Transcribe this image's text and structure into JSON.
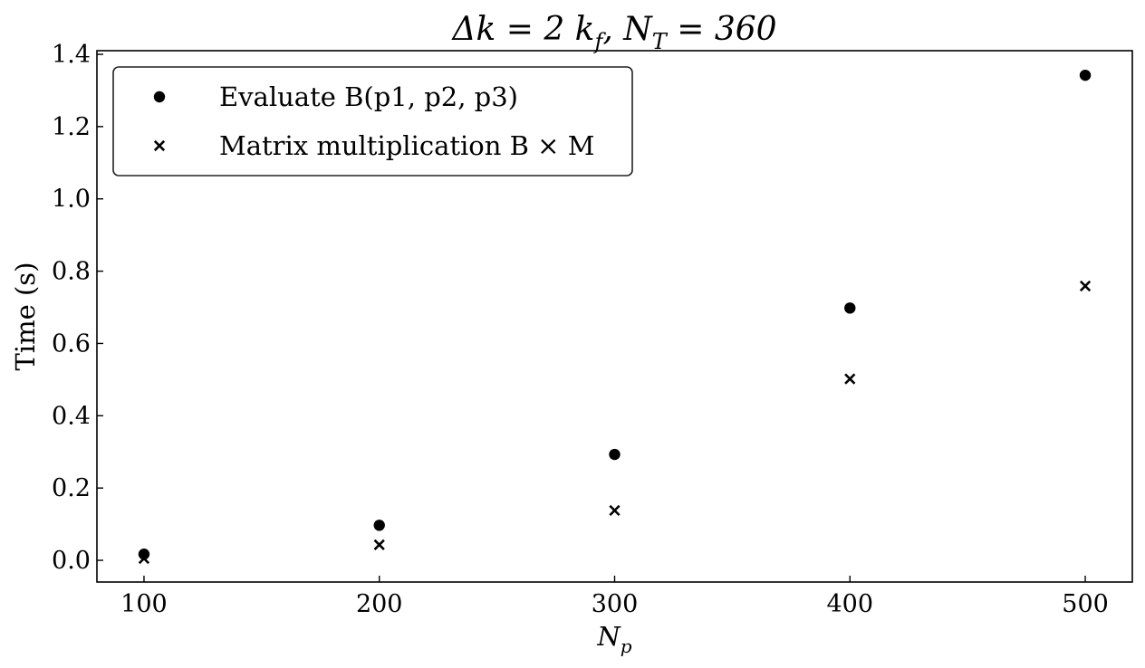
{
  "chart_data": {
    "type": "scatter",
    "title": "Δk = 2 k_f,  N_T = 360",
    "xlabel": "N_p",
    "ylabel": "Time (s)",
    "xlim": [
      80,
      520
    ],
    "ylim": [
      -0.06,
      1.41
    ],
    "x_ticks": [
      100,
      200,
      300,
      400,
      500
    ],
    "y_ticks": [
      0.0,
      0.2,
      0.4,
      0.6,
      0.8,
      1.0,
      1.2,
      1.4
    ],
    "x_tick_labels": [
      "100",
      "200",
      "300",
      "400",
      "500"
    ],
    "y_tick_labels": [
      "0.0",
      "0.2",
      "0.4",
      "0.6",
      "0.8",
      "1.0",
      "1.2",
      "1.4"
    ],
    "grid": false,
    "legend_position": "top-left",
    "series": [
      {
        "name": "Evaluate B(p1, p2, p3)",
        "marker": "circle",
        "color": "#000000",
        "x": [
          100,
          200,
          300,
          400,
          500
        ],
        "y": [
          0.017,
          0.097,
          0.293,
          0.698,
          1.342
        ]
      },
      {
        "name": "Matrix multiplication B × M",
        "marker": "x",
        "color": "#000000",
        "x": [
          100,
          200,
          300,
          400,
          500
        ],
        "y": [
          0.005,
          0.043,
          0.138,
          0.502,
          0.759
        ]
      }
    ]
  }
}
